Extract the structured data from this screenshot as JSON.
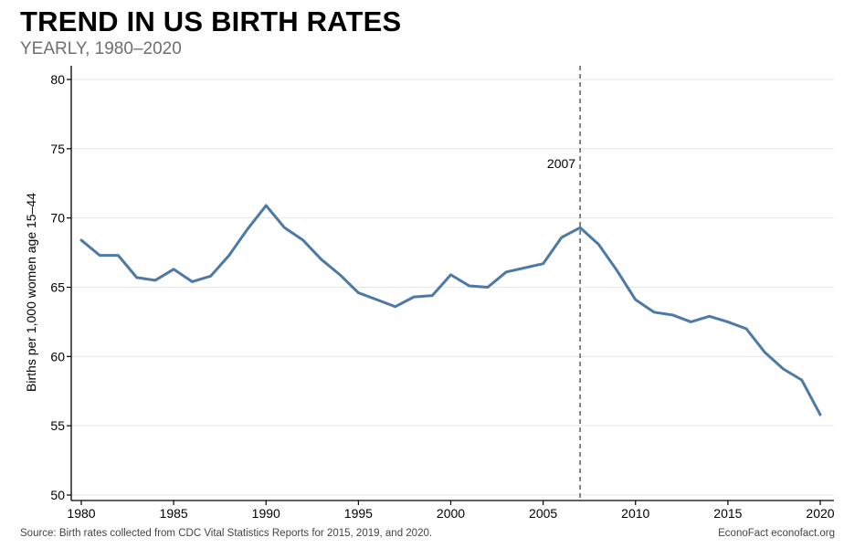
{
  "header": {
    "title": "TREND IN US BIRTH RATES",
    "subtitle": "YEARLY, 1980–2020"
  },
  "footer": {
    "source": "Source: Birth rates collected from CDC Vital Statistics Reports for 2015, 2019, and 2020.",
    "credit": "EconoFact  econofact.org"
  },
  "chart_data": {
    "type": "line",
    "title": "TREND IN US BIRTH RATES",
    "subtitle": "YEARLY, 1980–2020",
    "ylabel": "Births per 1,000 women age 15–44",
    "xlabel": "",
    "xlim": [
      1980,
      2020
    ],
    "ylim": [
      50,
      80
    ],
    "x_ticks": [
      1980,
      1985,
      1990,
      1995,
      2000,
      2005,
      2010,
      2015,
      2020
    ],
    "y_ticks": [
      50,
      55,
      60,
      65,
      70,
      75,
      80
    ],
    "grid": "horizontal",
    "line_color": "#4e79a7",
    "x": [
      1980,
      1981,
      1982,
      1983,
      1984,
      1985,
      1986,
      1987,
      1988,
      1989,
      1990,
      1991,
      1992,
      1993,
      1994,
      1995,
      1996,
      1997,
      1998,
      1999,
      2000,
      2001,
      2002,
      2003,
      2004,
      2005,
      2006,
      2007,
      2008,
      2009,
      2010,
      2011,
      2012,
      2013,
      2014,
      2015,
      2016,
      2017,
      2018,
      2019,
      2020
    ],
    "values": [
      68.4,
      67.3,
      67.3,
      65.7,
      65.5,
      66.3,
      65.4,
      65.8,
      67.3,
      69.2,
      70.9,
      69.3,
      68.4,
      67.0,
      65.9,
      64.6,
      64.1,
      63.6,
      64.3,
      64.4,
      65.9,
      65.1,
      65.0,
      66.1,
      66.4,
      66.7,
      68.6,
      69.3,
      68.1,
      66.2,
      64.1,
      63.2,
      63.0,
      62.5,
      62.9,
      62.5,
      62.0,
      60.3,
      59.1,
      58.3,
      55.8
    ],
    "annotation": {
      "x": 2007,
      "label": "2007",
      "style": "dashed-vertical"
    }
  }
}
